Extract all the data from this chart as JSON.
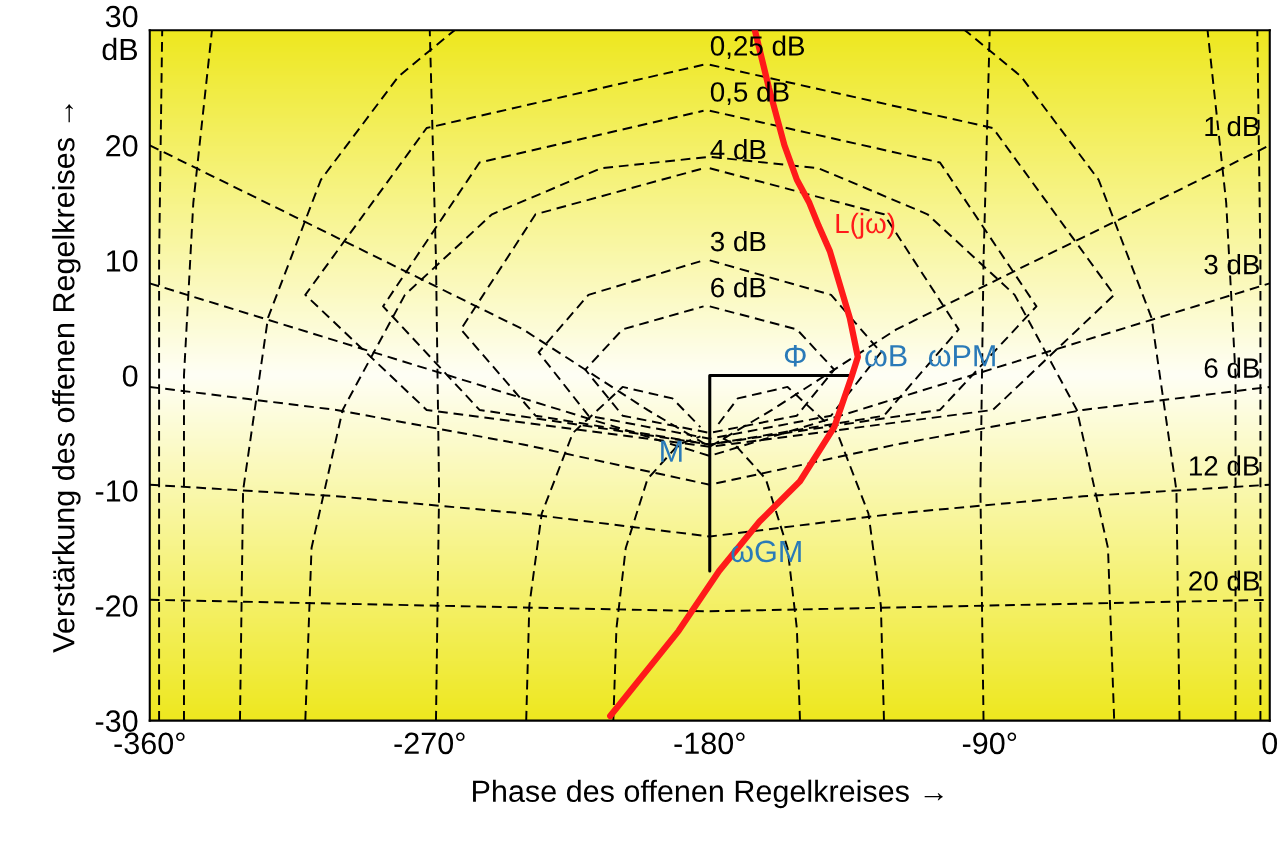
{
  "chart_data": {
    "type": "line",
    "xlabel": "Phase des offenen Regelkreises →",
    "ylabel": "Verstärkung des offenen Regelkreises →",
    "xlim": [
      -360,
      0
    ],
    "xticks": [
      {
        "value": -360,
        "label": "-360°"
      },
      {
        "value": -270,
        "label": "-270°"
      },
      {
        "value": -180,
        "label": "-180°"
      },
      {
        "value": -90,
        "label": "-90°"
      },
      0
    ],
    "ylim": [
      -30,
      30
    ],
    "yticks": [
      -30,
      -20,
      -10,
      0,
      10,
      20,
      {
        "value": 30,
        "label": "30\ndB"
      }
    ],
    "annotations": [
      {
        "text": "Φ",
        "x": -160,
        "y": 0
      },
      {
        "text": "M",
        "x": -200,
        "y": -8.3
      },
      {
        "text": "ωGM",
        "x": -177,
        "y": -17
      },
      {
        "text": "ωB",
        "x": -134,
        "y": 0
      },
      "ωPM"
    ],
    "series": [
      {
        "name": "6 dB",
        "color": "#000000",
        "line_style": "dashed",
        "x": [
          -180,
          -152,
          -140,
          -152,
          -180,
          -208,
          -220,
          -208,
          -182
        ],
        "values": [
          6,
          4,
          0.5,
          -3.5,
          -5,
          -3.5,
          0.5,
          4,
          6
        ]
      },
      {
        "name": "3 dB",
        "color": "#000000",
        "line_style": "dashed",
        "x": [
          -180,
          -141,
          -125,
          -141,
          -180,
          -219,
          -235,
          -219,
          -182
        ],
        "values": [
          10,
          7,
          2,
          -3.5,
          -5.5,
          -3.5,
          2,
          7,
          10
        ]
      },
      {
        "name": "4 dB",
        "color": "#000000",
        "line_style": "dashed",
        "x": [
          -180,
          -124,
          -100,
          -124,
          -180,
          -236,
          -260,
          -236,
          -182
        ],
        "values": [
          18,
          14,
          4,
          -3.5,
          -6,
          -3.5,
          4,
          14,
          18
        ]
      },
      {
        "name": "0,5 dB",
        "color": "#000000",
        "line_style": "dashed",
        "x": [
          -180,
          -106,
          -75,
          -106,
          -180,
          -254,
          -285,
          -254,
          -182
        ],
        "values": [
          23,
          18.5,
          6,
          -3,
          -6,
          -3,
          6,
          18.5,
          23
        ]
      },
      {
        "name": "0,25 dB",
        "color": "#000000",
        "line_style": "dashed",
        "x": [
          -180,
          -89,
          -50,
          -89,
          -180,
          -271,
          -310,
          -271,
          -182
        ],
        "values": [
          27,
          21.5,
          7,
          -3,
          -6.2,
          -3,
          7,
          21.5,
          27
        ]
      },
      {
        "name": "1 dB",
        "color": "#000000",
        "line_style": "dashed",
        "x": [
          -360,
          -300,
          -240,
          -200,
          -180,
          -160,
          -120,
          -60,
          0
        ],
        "values": [
          20,
          12,
          4,
          -3,
          -6.2,
          -3,
          4,
          12,
          20
        ]
      },
      {
        "name": "3 dB",
        "color": "#000000",
        "line_style": "dashed",
        "x": [
          -360,
          -300,
          -240,
          -180,
          -120,
          -60,
          0
        ],
        "values": [
          8,
          3,
          -2,
          -7,
          -2,
          3,
          8
        ]
      },
      {
        "name": "6 dB",
        "color": "#000000",
        "line_style": "dashed",
        "x": [
          -360,
          -300,
          -240,
          -180,
          -120,
          -60,
          0
        ],
        "values": [
          -1,
          -3,
          -6,
          -9.5,
          -6,
          -3,
          -1
        ]
      },
      {
        "name": "12 dB",
        "color": "#000000",
        "line_style": "dashed",
        "x": [
          -360,
          -300,
          -240,
          -180,
          -120,
          -60,
          0
        ],
        "values": [
          -9.5,
          -10.5,
          -12,
          -14,
          -12,
          -10.5,
          -9.5
        ]
      },
      {
        "name": "20 dB",
        "color": "#000000",
        "line_style": "dashed",
        "x": [
          -360,
          -270,
          -180,
          -90,
          0
        ],
        "values": [
          -19.5,
          -20,
          -20.5,
          -20,
          -19.5
        ]
      },
      {
        "color": "#000000",
        "line_style": "dashed",
        "x": [
          -211,
          -210,
          -207,
          -200,
          -190,
          -183
        ],
        "values": [
          -30,
          -22,
          -15,
          -9,
          -6,
          -5.3
        ]
      },
      {
        "color": "#000000",
        "line_style": "dashed",
        "x": [
          -151,
          -152,
          -155,
          -162,
          -172,
          -177
        ],
        "values": [
          -30,
          -22,
          -15,
          -9,
          -6,
          -5.3
        ]
      },
      {
        "color": "#000000",
        "line_style": "dashed",
        "x": [
          -239,
          -238,
          -234,
          -224,
          -208,
          -192,
          -183
        ],
        "values": [
          -30,
          -20,
          -12,
          -5,
          -1,
          -2,
          -4.5
        ]
      },
      {
        "color": "#000000",
        "line_style": "dashed",
        "x": [
          -124,
          -125,
          -129,
          -139,
          -155,
          -171,
          -178
        ],
        "values": [
          -30,
          -20,
          -12,
          -5,
          -1,
          -2,
          -4.5
        ]
      },
      {
        "color": "#000000",
        "line_style": "dashed",
        "x": [
          -268,
          -267,
          -268,
          -270
        ],
        "values": [
          -30,
          -10,
          10,
          30
        ]
      },
      {
        "color": "#000000",
        "line_style": "dashed",
        "x": [
          -92,
          -93,
          -92,
          -90
        ],
        "values": [
          -30,
          -10,
          10,
          30
        ]
      },
      {
        "color": "#000000",
        "line_style": "dashed",
        "x": [
          -310,
          -308,
          -298,
          -278,
          -250,
          -215,
          -180,
          -145,
          -110,
          -82,
          -62,
          -52,
          -50
        ],
        "values": [
          -30,
          -15,
          -3,
          7,
          14,
          18,
          19,
          18,
          14,
          7,
          -3,
          -15,
          -30
        ]
      },
      {
        "color": "#000000",
        "line_style": "dashed",
        "x": [
          -331,
          -330,
          -322,
          -305,
          -280,
          -262
        ],
        "values": [
          -30,
          -10,
          5,
          17,
          26,
          30
        ]
      },
      {
        "color": "#000000",
        "line_style": "dashed",
        "x": [
          -29,
          -30,
          -38,
          -55,
          -80,
          -98
        ],
        "values": [
          -30,
          -10,
          5,
          17,
          26,
          30
        ]
      },
      {
        "color": "#000000",
        "line_style": "dashed",
        "x": [
          -349,
          -349,
          -346,
          -340
        ],
        "values": [
          -30,
          0,
          15,
          30
        ]
      },
      {
        "color": "#000000",
        "line_style": "dashed",
        "x": [
          -11,
          -11,
          -14,
          -20
        ],
        "values": [
          -30,
          0,
          15,
          30
        ]
      },
      {
        "color": "#000000",
        "line_style": "dashed",
        "x": [
          -357,
          -357,
          -356
        ],
        "values": [
          -30,
          10,
          30
        ]
      },
      {
        "color": "#000000",
        "line_style": "dashed",
        "x": [
          -3,
          -3,
          -4
        ],
        "values": [
          -30,
          10,
          30
        ]
      },
      {
        "color": "#000000",
        "line_style": "solid",
        "x": [
          -134,
          -180,
          -180
        ],
        "values": [
          0,
          0,
          -17
        ]
      },
      {
        "name": "L(jω)",
        "color": "#ff1a1a",
        "line_style": "solid",
        "x": [
          -165.5,
          -161,
          -156,
          -152,
          -148,
          -145,
          -141.4,
          -135,
          -132.4,
          -134.4,
          -140,
          -151,
          -164,
          -177,
          -190,
          -212
        ],
        "values": [
          30,
          25,
          20,
          17,
          15,
          13,
          10.8,
          5,
          1.6,
          -0.1,
          -4.5,
          -9.2,
          -12.7,
          -17,
          -22.2,
          -29.6
        ]
      }
    ]
  }
}
